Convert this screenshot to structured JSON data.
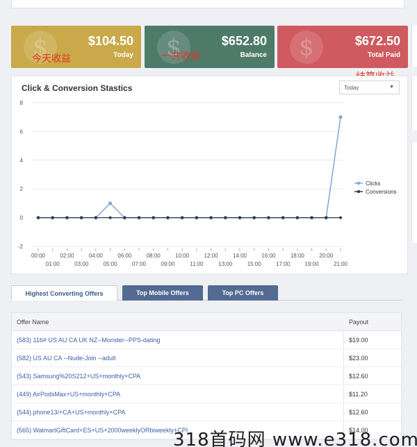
{
  "stats": [
    {
      "amount": "$104.50",
      "caption": "Today",
      "note": "今天收益"
    },
    {
      "amount": "$652.80",
      "caption": "Balance",
      "note": "一共收益"
    },
    {
      "amount": "$672.50",
      "caption": "Total Paid",
      "note": "结算收益"
    }
  ],
  "panel": {
    "title": "Click & Conversion Stastics",
    "range_select": "Today"
  },
  "chart_data": {
    "type": "line",
    "x": [
      "00:00",
      "01:00",
      "02:00",
      "03:00",
      "04:00",
      "05:00",
      "06:00",
      "07:00",
      "08:00",
      "09:00",
      "10:00",
      "11:00",
      "12:00",
      "13:00",
      "14:00",
      "15:00",
      "16:00",
      "17:00",
      "18:00",
      "19:00",
      "20:00",
      "21:00"
    ],
    "series": [
      {
        "name": "Clicks",
        "values": [
          0,
          0,
          0,
          0,
          0,
          1,
          0,
          0,
          0,
          0,
          0,
          0,
          0,
          0,
          0,
          0,
          0,
          0,
          0,
          0,
          0,
          7
        ],
        "color": "#7ba7d9"
      },
      {
        "name": "Conversions",
        "values": [
          0,
          0,
          0,
          0,
          0,
          0,
          0,
          0,
          0,
          0,
          0,
          0,
          0,
          0,
          0,
          0,
          0,
          0,
          0,
          0,
          0,
          0
        ],
        "color": "#2d3b4d"
      }
    ],
    "ylim": [
      -2,
      8
    ],
    "yticks": [
      "-2",
      "0",
      "2",
      "4",
      "6",
      "8"
    ],
    "grid": true,
    "legend": "right"
  },
  "tabs": [
    "Highest Converting Offers",
    "Top Mobile Offers",
    "Top PC Offers"
  ],
  "table": {
    "headers": [
      "Offer Name",
      "Payout"
    ],
    "rows": [
      {
        "name": "(583) 116# US AU CA UK NZ--Monster--PPS-dating",
        "payout": "$19.00"
      },
      {
        "name": "(582) US AU CA --Nude-Join --adult",
        "payout": "$23.00"
      },
      {
        "name": "(543) Samsung%20S212+US+monthly+CPA",
        "payout": "$12.60"
      },
      {
        "name": "(449) AirPodsMax+US+monthly+CPA",
        "payout": "$11.20"
      },
      {
        "name": "(544) phone13/+CA+US+monthly+CPA",
        "payout": "$12.60"
      },
      {
        "name": "(565) WalmartGiftCard+ES+US+2000weeklyORbiweekly+CPI",
        "payout": "$14.00"
      }
    ]
  },
  "watermark": "318首码网 www.e318.com"
}
